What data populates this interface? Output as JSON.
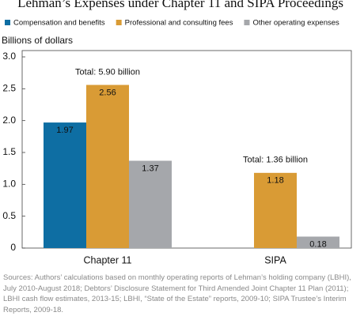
{
  "chart_data": {
    "type": "bar",
    "title": "Lehman’s Expenses under Chapter 11 and SIPA Proceedings",
    "ylabel": "Billions of dollars",
    "categories": [
      "Chapter 11",
      "SIPA"
    ],
    "series": [
      {
        "name": "Compensation and benefits",
        "color": "#0e6ea3",
        "values": [
          1.97,
          null
        ]
      },
      {
        "name": "Professional and consulting fees",
        "color": "#d99b35",
        "values": [
          2.56,
          1.18
        ]
      },
      {
        "name": "Other operating expenses",
        "color": "#a5a7ab",
        "values": [
          1.37,
          0.18
        ]
      }
    ],
    "annotations": [
      "Total: 5.90 billion",
      "Total: 1.36 billion"
    ],
    "ylim": [
      0,
      3
    ],
    "yticks": [
      0,
      0.5,
      {
        "value": 1,
        "label": "1.0"
      },
      1.5,
      {
        "value": 2,
        "label": "2.0"
      },
      2.5,
      {
        "value": 3,
        "label": "3.0"
      }
    ],
    "grid": false,
    "source": "Sources: Authors’ calculations based on monthly operating reports of Lehman’s holding company (LBHI), July 2010-August 2018; Debtors’ Disclosure Statement for Third Amended Joint Chapter 11 Plan (2011); LBHI cash flow estimates, 2013-15; LBHI, “State of the Estate” reports, 2009-10; SIPA Trustee’s Interim Reports, 2009-18."
  }
}
